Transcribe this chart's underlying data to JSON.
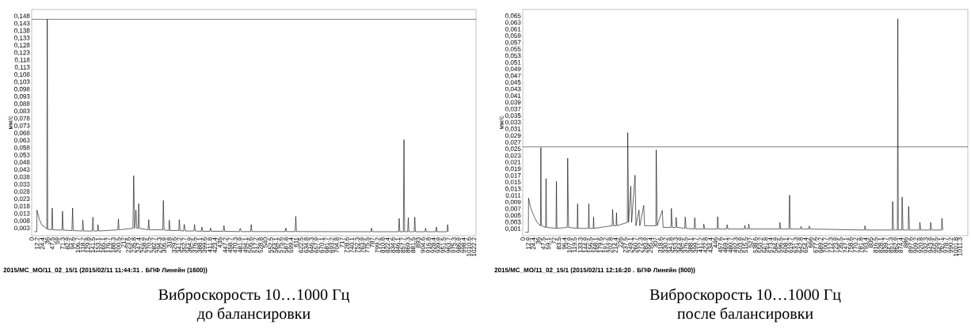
{
  "chart_data": [
    {
      "type": "line",
      "ylabel": "мм/с",
      "color": "#000000",
      "x": [
        6,
        12,
        12.2,
        18,
        24,
        30,
        35,
        36,
        37,
        46,
        47.5,
        49,
        70,
        71.3,
        73,
        93,
        94.6,
        96,
        117,
        118.2,
        120,
        140,
        141.5,
        143,
        152,
        153.1,
        155,
        199,
        200.5,
        202,
        234,
        235.8,
        238,
        241,
        243,
        246,
        247.4,
        249,
        269,
        270.5,
        272,
        303,
        304.3,
        306,
        317,
        318,
        320,
        340,
        341.2,
        343,
        351,
        352.7,
        355,
        375,
        376.5,
        378,
        392,
        393.5,
        395,
        412,
        413.5,
        415,
        443,
        444.5,
        446,
        480,
        482,
        484,
        506,
        507.5,
        509,
        586,
        587.5,
        589,
        609,
        610.5,
        612,
        784,
        785.5,
        787,
        848,
        849.5,
        851,
        859,
        860.5,
        862,
        869,
        870.5,
        872,
        884,
        885.5,
        887,
        909,
        910.5,
        912,
        934,
        935.5,
        937,
        960,
        961.5,
        963
      ],
      "values": [
        0.0007,
        0.0007,
        0.0155,
        0.009,
        0.005,
        0.004,
        0.0025,
        0.146,
        0.0025,
        0.002,
        0.0169,
        0.002,
        0.0018,
        0.0147,
        0.0018,
        0.0015,
        0.0169,
        0.0015,
        0.0012,
        0.0086,
        0.0012,
        0.0012,
        0.0107,
        0.0012,
        0.0012,
        0.0056,
        0.0012,
        0.002,
        0.0094,
        0.002,
        0.003,
        0.039,
        0.003,
        0.0155,
        0.003,
        0.003,
        0.0199,
        0.003,
        0.002,
        0.009,
        0.002,
        0.002,
        0.0221,
        0.002,
        0.0015,
        0.0086,
        0.0015,
        0.0015,
        0.009,
        0.0015,
        0.0012,
        0.0058,
        0.0012,
        0.0012,
        0.0056,
        0.0012,
        0.001,
        0.004,
        0.001,
        0.001,
        0.0033,
        0.001,
        0.001,
        0.0049,
        0.001,
        0.0008,
        0.003,
        0.0008,
        0.0008,
        0.0056,
        0.0008,
        0.0008,
        0.0033,
        0.0008,
        0.0008,
        0.0112,
        0.0008,
        0.0007,
        0.0032,
        0.0007,
        0.0007,
        0.0098,
        0.0007,
        0.0007,
        0.0637,
        0.0007,
        0.0007,
        0.0103,
        0.0007,
        0.0007,
        0.0107,
        0.0007,
        0.0007,
        0.0032,
        0.0007,
        0.0007,
        0.004,
        0.0007,
        0.0007,
        0.0056,
        0.0007
      ],
      "xlim": [
        0,
        1027
      ],
      "ylim": [
        -0.002,
        0.1527
      ],
      "xticks": [
        0,
        12.2,
        24.4,
        36,
        47.5,
        59,
        71.3,
        82.9,
        94.6,
        106.7,
        118.2,
        129.8,
        141.5,
        153.1,
        165.1,
        176.7,
        188.3,
        200.5,
        212,
        223.6,
        235.8,
        247.4,
        258.9,
        270.5,
        282.7,
        294.3,
        305.9,
        318,
        329.6,
        341.2,
        352.7,
        364.9,
        376.5,
        388.1,
        399.6,
        411.8,
        423.4,
        435,
        447.2,
        458.7,
        470.3,
        481.9,
        494.1,
        505.6,
        517.2,
        528.8,
        540,
        552.5,
        564.1,
        575.6,
        587.8,
        599.4,
        611,
        622.5,
        634.8,
        646.3,
        657.9,
        670.1,
        681.7,
        693.2,
        704.8,
        717,
        728.6,
        740.1,
        752.3,
        763.9,
        775.5,
        787,
        799.2,
        810.8,
        822.4,
        834.6,
        846.1,
        857.7,
        869.3,
        881.5,
        893,
        904.6,
        916.8,
        928.4,
        939.9,
        951.5,
        963.7,
        975.3,
        986.9,
        998.4,
        1010.6,
        1022.2
      ],
      "yticks": [
        {
          "value": 0.003,
          "label": "0,003"
        },
        {
          "value": 0.008,
          "label": "0,008"
        },
        {
          "value": 0.013,
          "label": "0,013"
        },
        {
          "value": 0.018,
          "label": "0,018"
        },
        {
          "value": 0.023,
          "label": "0,023"
        },
        {
          "value": 0.028,
          "label": "0,028"
        },
        {
          "value": 0.033,
          "label": "0,033"
        },
        {
          "value": 0.038,
          "label": "0,038"
        },
        {
          "value": 0.043,
          "label": "0,043"
        },
        {
          "value": 0.048,
          "label": "0,048"
        },
        {
          "value": 0.053,
          "label": "0,053"
        },
        {
          "value": 0.058,
          "label": "0,058"
        },
        {
          "value": 0.063,
          "label": "0,063"
        },
        {
          "value": 0.068,
          "label": "0,068"
        },
        {
          "value": 0.073,
          "label": "0,073"
        },
        {
          "value": 0.078,
          "label": "0,078"
        },
        {
          "value": 0.083,
          "label": "0,083"
        },
        {
          "value": 0.088,
          "label": "0,088"
        },
        {
          "value": 0.093,
          "label": "0,093"
        },
        {
          "value": 0.098,
          "label": "0,098"
        },
        {
          "value": 0.103,
          "label": "0,103"
        },
        {
          "value": 0.108,
          "label": "0,108"
        },
        {
          "value": 0.113,
          "label": "0,113"
        },
        {
          "value": 0.118,
          "label": "0,118"
        },
        {
          "value": 0.123,
          "label": "0,123"
        },
        {
          "value": 0.128,
          "label": "0,128"
        },
        {
          "value": 0.133,
          "label": "0,133"
        },
        {
          "value": 0.138,
          "label": "0,138"
        },
        {
          "value": 0.143,
          "label": "0,143"
        },
        {
          "value": 0.148,
          "label": "0,148"
        }
      ],
      "ref_lines": [
        {
          "axis": "y",
          "value": 0.146,
          "color": "#000000"
        }
      ],
      "annotations": [
        "2015/MC_MO/11_02_15/1 (2015/02/11 11:44:31 . БПФ Линейн (1600))",
        "Виброскорость 10…1000 Гц",
        "до балансировки"
      ]
    },
    {
      "type": "line",
      "ylabel": "мм/с",
      "color": "#000000",
      "x": [
        6,
        13,
        13.5,
        18,
        24,
        33,
        41,
        42,
        43,
        53,
        54,
        55,
        77,
        78,
        79,
        103,
        104,
        106,
        126,
        127,
        128,
        152,
        153,
        154,
        163,
        164,
        165,
        207,
        208,
        210,
        216,
        217,
        218,
        242,
        243,
        245,
        250,
        252,
        260,
        262,
        269,
        271,
        280,
        282,
        308,
        309,
        311,
        323,
        325,
        343,
        344,
        346,
        354,
        355,
        357,
        375,
        376,
        378,
        397,
        398,
        400,
        418,
        419,
        421,
        450,
        451,
        453,
        472,
        473,
        475,
        513,
        514,
        516,
        522,
        523,
        525,
        594,
        595,
        597,
        616,
        617.5,
        619,
        643,
        644,
        646,
        662,
        663,
        665,
        791,
        792,
        794,
        855,
        856,
        858,
        867,
        868,
        869,
        877,
        878,
        880,
        892,
        893,
        895,
        918,
        919,
        921,
        943,
        944,
        946,
        969,
        970,
        972
      ],
      "values": [
        0,
        0,
        0.0103,
        0.0075,
        0.0055,
        0.003,
        0.002,
        0.0255,
        0.002,
        0.0015,
        0.0162,
        0.0015,
        0.0012,
        0.0153,
        0.0012,
        0.0015,
        0.0223,
        0.0015,
        0.0012,
        0.0086,
        0.0012,
        0.0012,
        0.0086,
        0.0012,
        0.0012,
        0.0046,
        0.0012,
        0.002,
        0.0069,
        0.002,
        0.002,
        0.0059,
        0.002,
        0.003,
        0.03,
        0.003,
        0.0139,
        0.003,
        0.0172,
        0.002,
        0.0067,
        0.002,
        0.0081,
        0.002,
        0.002,
        0.0248,
        0.002,
        0.0066,
        0.0015,
        0.0015,
        0.0072,
        0.0015,
        0.0015,
        0.0045,
        0.0015,
        0.0012,
        0.0046,
        0.0012,
        0.001,
        0.0044,
        0.001,
        0.001,
        0.0025,
        0.001,
        0.001,
        0.0047,
        0.001,
        0.001,
        0.0023,
        0.001,
        0.001,
        0.0021,
        0.001,
        0.001,
        0.0025,
        0.001,
        0.001,
        0.003,
        0.001,
        0.001,
        0.0112,
        0.001,
        0.001,
        0.0018,
        0.001,
        0.001,
        0.0019,
        0.001,
        0.0007,
        0.002,
        0.0007,
        0.0007,
        0.0093,
        0.0007,
        0.0007,
        0.0642,
        0.0007,
        0.0007,
        0.0106,
        0.0007,
        0.0007,
        0.0078,
        0.0007,
        0.0007,
        0.003,
        0.0007,
        0.0007,
        0.003,
        0.0007,
        0.0007,
        0.0042,
        0.0007
      ],
      "xlim": [
        0,
        1030
      ],
      "ylim": [
        -0.001,
        0.067
      ],
      "xticks": [
        0,
        12.9,
        24.4,
        36,
        47.5,
        59.1,
        72,
        83.5,
        96.4,
        107.9,
        119.5,
        133.3,
        144.9,
        156.5,
        168.1,
        179.6,
        191.2,
        202.8,
        214.4,
        226,
        237.5,
        249.1,
        260.7,
        272.3,
        283.9,
        295.4,
        307,
        318.6,
        330.2,
        341.8,
        353.3,
        364.9,
        376.5,
        388.1,
        399.7,
        411.2,
        422.8,
        434.4,
        446,
        457.6,
        469.1,
        480.7,
        492.3,
        503.9,
        515.5,
        527,
        538.6,
        550.2,
        561.8,
        573.4,
        584.9,
        596.5,
        608.1,
        619.7,
        631.3,
        642.8,
        654.4,
        666,
        677.6,
        689.2,
        700.7,
        712.3,
        723.9,
        735.5,
        747.1,
        758.6,
        770.2,
        781.8,
        793.4,
        805,
        816.5,
        828.1,
        839.7,
        851.3,
        862.9,
        874.4,
        886,
        897.6,
        909.2,
        920.8,
        932.3,
        943.9,
        955.5,
        967.1,
        978.7,
        990.2,
        1001.8,
        1011.3
      ],
      "yticks": [
        {
          "value": 0.001,
          "label": "0,001"
        },
        {
          "value": 0.003,
          "label": "0,003"
        },
        {
          "value": 0.005,
          "label": "0,005"
        },
        {
          "value": 0.007,
          "label": "0,007"
        },
        {
          "value": 0.009,
          "label": "0,009"
        },
        {
          "value": 0.011,
          "label": "0,011"
        },
        {
          "value": 0.013,
          "label": "0,013"
        },
        {
          "value": 0.015,
          "label": "0,015"
        },
        {
          "value": 0.017,
          "label": "0,017"
        },
        {
          "value": 0.019,
          "label": "0,019"
        },
        {
          "value": 0.021,
          "label": "0,021"
        },
        {
          "value": 0.023,
          "label": "0,023"
        },
        {
          "value": 0.025,
          "label": "0,025"
        },
        {
          "value": 0.027,
          "label": "0,027"
        },
        {
          "value": 0.029,
          "label": "0,029"
        },
        {
          "value": 0.031,
          "label": "0,031"
        },
        {
          "value": 0.033,
          "label": "0,033"
        },
        {
          "value": 0.035,
          "label": "0,035"
        },
        {
          "value": 0.037,
          "label": "0,037"
        },
        {
          "value": 0.039,
          "label": "0,039"
        },
        {
          "value": 0.041,
          "label": "0,041"
        },
        {
          "value": 0.043,
          "label": "0,043"
        },
        {
          "value": 0.045,
          "label": "0,045"
        },
        {
          "value": 0.047,
          "label": "0,047"
        },
        {
          "value": 0.049,
          "label": "0,049"
        },
        {
          "value": 0.051,
          "label": "0,051"
        },
        {
          "value": 0.053,
          "label": "0,053"
        },
        {
          "value": 0.055,
          "label": "0,055"
        },
        {
          "value": 0.057,
          "label": "0,057"
        },
        {
          "value": 0.059,
          "label": "0,059"
        },
        {
          "value": 0.061,
          "label": "0,061"
        },
        {
          "value": 0.063,
          "label": "0,063"
        },
        {
          "value": 0.065,
          "label": "0,065"
        }
      ],
      "ref_lines": [
        {
          "axis": "y",
          "value": 0.0257,
          "color": "#000000"
        }
      ],
      "annotations": [
        "2015/MC_MO/11_02_15/1 (2015/02/11 12:16:20 . БПФ Линейн (800))",
        "Виброскорость 10…1000 Гц",
        "после балансировки"
      ]
    }
  ]
}
